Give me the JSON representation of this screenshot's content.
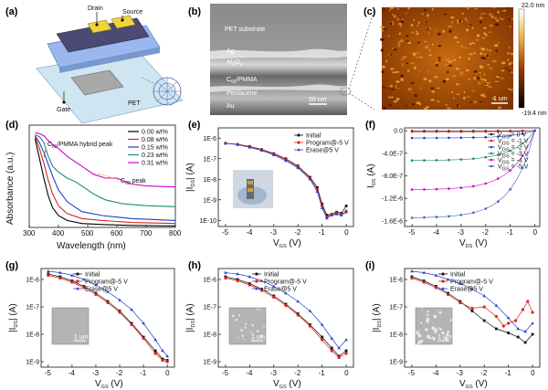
{
  "panels": {
    "a": {
      "label": "(a)",
      "drain": "Drain",
      "source": "Source",
      "gate": "Gate",
      "pet": "PET"
    },
    "b": {
      "label": "(b)",
      "layers": [
        "PET substrate",
        "Ag",
        "Al",
        "O",
        "3",
        "C",
        "60",
        "/PMMA",
        "Pentacene",
        "Au"
      ],
      "scale": "50 nm"
    },
    "c": {
      "label": "(c)",
      "scale": "1 um",
      "cbar_max": "22.0 nm",
      "cbar_min": "-19.4 nm"
    },
    "d": {
      "label": "(d)",
      "ylabel": "Absorbance (a.u.)",
      "xlabel": "Wavelength (nm)",
      "annot_hybrid": [
        "C",
        "60",
        "/PMMA hybrid peak"
      ],
      "annot_c60": [
        "C",
        "60",
        " peak"
      ],
      "legend": [
        "0.00 wt%",
        "0.08 wt%",
        "0.15 wt%",
        "0.23 wt%",
        "0.31 wt%"
      ],
      "colors": [
        "#000000",
        "#d62728",
        "#1f3fbf",
        "#1a8a7a",
        "#d400c8"
      ]
    },
    "e": {
      "label": "(e)",
      "legend": [
        "Initial",
        "Program@-5 V",
        "Erase@5 V"
      ],
      "ylabel": [
        "|I",
        "DS",
        "| (A)"
      ],
      "xlabel": [
        "V",
        "GS",
        " (V)"
      ]
    },
    "f": {
      "label": "(f)",
      "legend": [
        [
          "V",
          "GS",
          " = 0 V"
        ],
        [
          "V",
          "GS",
          " = -1 V"
        ],
        [
          "V",
          "GS",
          " = -2 V"
        ],
        [
          "V",
          "GS",
          " = -3 V"
        ],
        [
          "V",
          "GS",
          " = -4 V"
        ],
        [
          "V",
          "GS",
          " = -5 V"
        ]
      ],
      "ylabel": [
        "I",
        "DS",
        " (A)"
      ],
      "xlabel": [
        "V",
        "DS",
        " (V)"
      ]
    },
    "g": {
      "label": "(g)",
      "legend": [
        "Initial",
        "Program@-5 V",
        "Erase@5 V"
      ],
      "ylabel": [
        "|I",
        "DS",
        "| (A)"
      ],
      "xlabel": [
        "V",
        "GS",
        " (V)"
      ],
      "scale": "1 um"
    },
    "h": {
      "label": "(h)",
      "legend": [
        "Initial",
        "Program@-5 V",
        "Erase@5 V"
      ],
      "ylabel": [
        "|I",
        "DS",
        "| (A)"
      ],
      "xlabel": [
        "V",
        "GS",
        " (V)"
      ],
      "scale": "1 um"
    },
    "i": {
      "label": "(i)",
      "legend": [
        "Initial",
        "Program@-5 V",
        "Erase@5 V"
      ],
      "ylabel": [
        "|I",
        "DS",
        "| (A)"
      ],
      "xlabel": [
        "V",
        "GS",
        " (V)"
      ],
      "scale": "1 um"
    }
  },
  "chart_data": [
    {
      "panel": "d",
      "type": "line",
      "xlabel": "Wavelength (nm)",
      "ylabel": "Absorbance (a.u.)",
      "xlim": [
        300,
        800
      ],
      "xticks": [
        "300",
        "400",
        "500",
        "600",
        "700",
        "800"
      ],
      "series": [
        {
          "name": "0.00 wt%",
          "color": "#000000",
          "x": [
            320,
            335,
            350,
            365,
            380,
            400,
            430,
            480,
            550,
            650,
            800
          ],
          "y": [
            0.9,
            0.7,
            0.5,
            0.32,
            0.2,
            0.12,
            0.07,
            0.04,
            0.03,
            0.02,
            0.015
          ]
        },
        {
          "name": "0.08 wt%",
          "color": "#d62728",
          "x": [
            320,
            335,
            350,
            365,
            380,
            400,
            430,
            480,
            550,
            650,
            800
          ],
          "y": [
            0.92,
            0.8,
            0.65,
            0.48,
            0.34,
            0.22,
            0.14,
            0.09,
            0.07,
            0.05,
            0.04
          ]
        },
        {
          "name": "0.15 wt%",
          "color": "#1f3fbf",
          "x": [
            320,
            335,
            350,
            365,
            380,
            400,
            430,
            480,
            550,
            650,
            800
          ],
          "y": [
            0.93,
            0.86,
            0.76,
            0.64,
            0.52,
            0.38,
            0.26,
            0.16,
            0.12,
            0.09,
            0.07
          ]
        },
        {
          "name": "0.23 wt%",
          "color": "#1a8a7a",
          "x": [
            320,
            335,
            350,
            365,
            380,
            400,
            430,
            460,
            480,
            520,
            560,
            620,
            700,
            800
          ],
          "y": [
            0.94,
            0.92,
            0.86,
            0.72,
            0.62,
            0.56,
            0.5,
            0.46,
            0.42,
            0.34,
            0.28,
            0.24,
            0.22,
            0.21
          ]
        },
        {
          "name": "0.31 wt%",
          "color": "#d400c8",
          "x": [
            320,
            335,
            350,
            365,
            380,
            400,
            430,
            460,
            490,
            520,
            560,
            600,
            650,
            700,
            800
          ],
          "y": [
            0.96,
            0.95,
            0.93,
            0.88,
            0.84,
            0.8,
            0.72,
            0.66,
            0.6,
            0.54,
            0.5,
            0.5,
            0.44,
            0.42,
            0.41
          ]
        }
      ]
    },
    {
      "panel": "e",
      "type": "scatter",
      "xlabel": "VGS (V)",
      "ylabel": "|IDS| (A)",
      "xlim": [
        -5.3,
        0.3
      ],
      "ylim_log10": [
        -10.3,
        -5.5
      ],
      "xticks": [
        "-5",
        "-4",
        "-3",
        "-2",
        "-1",
        "0"
      ],
      "yticks": [
        "1E-6",
        "1E-7",
        "1E-8",
        "1E-9",
        "1E-10"
      ],
      "series": [
        {
          "name": "Initial",
          "color": "#111111",
          "x": [
            -5,
            -4.5,
            -4,
            -3.5,
            -3,
            -2.5,
            -2,
            -1.5,
            -1.2,
            -1,
            -0.8,
            -0.6,
            -0.4,
            -0.2,
            0
          ],
          "log10y": [
            -6.25,
            -6.3,
            -6.4,
            -6.55,
            -6.75,
            -7,
            -7.35,
            -7.9,
            -8.4,
            -9.2,
            -9.75,
            -9.7,
            -9.6,
            -9.65,
            -9.3
          ]
        },
        {
          "name": "Program@-5 V",
          "color": "#e02020",
          "x": [
            -5,
            -4.5,
            -4,
            -3.5,
            -3,
            -2.5,
            -2,
            -1.5,
            -1.2,
            -1,
            -0.8,
            -0.6,
            -0.4,
            -0.2,
            0
          ],
          "log10y": [
            -6.25,
            -6.3,
            -6.42,
            -6.57,
            -6.78,
            -7.05,
            -7.4,
            -7.95,
            -8.5,
            -9.3,
            -9.85,
            -9.7,
            -9.65,
            -9.7,
            -9.55
          ]
        },
        {
          "name": "Erase@5 V",
          "color": "#2040d0",
          "x": [
            -5,
            -4.5,
            -4,
            -3.5,
            -3,
            -2.5,
            -2,
            -1.5,
            -1.2,
            -1,
            -0.8,
            -0.6,
            -0.4,
            -0.2,
            0
          ],
          "log10y": [
            -6.25,
            -6.32,
            -6.45,
            -6.6,
            -6.82,
            -7.1,
            -7.45,
            -8.0,
            -8.6,
            -9.4,
            -9.9,
            -9.75,
            -9.7,
            -9.75,
            -9.6
          ]
        }
      ]
    },
    {
      "panel": "f",
      "type": "scatter",
      "xlabel": "VDS (V)",
      "ylabel": "IDS (A)",
      "xlim": [
        -5.3,
        0.2
      ],
      "ylim": [
        -1.7e-06,
        5e-08
      ],
      "xticks": [
        "-5",
        "-4",
        "-3",
        "-2",
        "-1",
        "0"
      ],
      "yticks": [
        "-1.6E-6",
        "-1.2E-6",
        "-8.0E-7",
        "-4.0E-7",
        "0.0"
      ],
      "series": [
        {
          "name": "VGS = 0 V",
          "color": "#111111",
          "sat": -5e-09
        },
        {
          "name": "VGS = -1 V",
          "color": "#e02020",
          "sat": -2e-08
        },
        {
          "name": "VGS = -2 V",
          "color": "#2040d0",
          "sat": -1.3e-07
        },
        {
          "name": "VGS = -3 V",
          "color": "#1a8a7a",
          "sat": -5.3e-07
        },
        {
          "name": "VGS = -4 V",
          "color": "#d400c8",
          "sat": -1.05e-06
        },
        {
          "name": "VGS = -5 V",
          "color": "#4060c0",
          "sat": -1.55e-06
        }
      ]
    },
    {
      "panel": "g",
      "type": "scatter",
      "xlabel": "VGS (V)",
      "ylabel": "|IDS| (A)",
      "xlim": [
        -5.3,
        0.3
      ],
      "ylim_log10": [
        -9.2,
        -5.6
      ],
      "xticks": [
        "-5",
        "-4",
        "-3",
        "-2",
        "-1",
        "0"
      ],
      "yticks": [
        "1E-6",
        "1E-7",
        "1E-8",
        "1E-9"
      ],
      "series": [
        {
          "name": "Initial",
          "color": "#111111",
          "x": [
            -5,
            -4.5,
            -4,
            -3.5,
            -3,
            -2.5,
            -2,
            -1.5,
            -1,
            -0.5,
            -0.2,
            0
          ],
          "log10y": [
            -5.8,
            -5.9,
            -6.05,
            -6.25,
            -6.5,
            -6.8,
            -7.15,
            -7.6,
            -8.1,
            -8.6,
            -8.9,
            -8.95
          ]
        },
        {
          "name": "Program@-5 V",
          "color": "#e02020",
          "x": [
            -5,
            -4.5,
            -4,
            -3.5,
            -3,
            -2.5,
            -2,
            -1.5,
            -1,
            -0.5,
            -0.2,
            0
          ],
          "log10y": [
            -5.85,
            -5.95,
            -6.1,
            -6.3,
            -6.55,
            -6.85,
            -7.2,
            -7.65,
            -8.15,
            -8.7,
            -8.95,
            -9.0
          ]
        },
        {
          "name": "Erase@5 V",
          "color": "#2040d0",
          "x": [
            -5,
            -4.5,
            -4,
            -3.5,
            -3,
            -2.5,
            -2,
            -1.5,
            -1,
            -0.5,
            -0.2,
            0
          ],
          "log10y": [
            -5.7,
            -5.75,
            -5.85,
            -6.0,
            -6.2,
            -6.45,
            -6.75,
            -7.1,
            -7.6,
            -8.2,
            -8.6,
            -8.8
          ]
        }
      ]
    },
    {
      "panel": "h",
      "type": "scatter",
      "xlabel": "VGS (V)",
      "ylabel": "|IDS| (A)",
      "xlim": [
        -5.3,
        0.3
      ],
      "ylim_log10": [
        -9.2,
        -5.6
      ],
      "xticks": [
        "-5",
        "-4",
        "-3",
        "-2",
        "-1",
        "0"
      ],
      "yticks": [
        "1E-6",
        "1E-7",
        "1E-8",
        "1E-9"
      ],
      "series": [
        {
          "name": "Initial",
          "color": "#111111",
          "x": [
            -5,
            -4.5,
            -4,
            -3.5,
            -3,
            -2.5,
            -2,
            -1.5,
            -1,
            -0.6,
            -0.3,
            0
          ],
          "log10y": [
            -5.9,
            -6.0,
            -6.15,
            -6.35,
            -6.6,
            -6.9,
            -7.25,
            -7.65,
            -8.1,
            -8.5,
            -8.8,
            -8.6
          ]
        },
        {
          "name": "Program@-5 V",
          "color": "#e02020",
          "x": [
            -5,
            -4.5,
            -4,
            -3.5,
            -3,
            -2.5,
            -2,
            -1.5,
            -1,
            -0.6,
            -0.3,
            0
          ],
          "log10y": [
            -5.95,
            -6.05,
            -6.2,
            -6.4,
            -6.65,
            -6.95,
            -7.3,
            -7.7,
            -8.2,
            -8.6,
            -8.85,
            -8.7
          ]
        },
        {
          "name": "Erase@5 V",
          "color": "#2040d0",
          "x": [
            -5,
            -4.5,
            -4,
            -3.5,
            -3,
            -2.5,
            -2,
            -1.5,
            -1,
            -0.6,
            -0.3,
            0
          ],
          "log10y": [
            -5.75,
            -5.8,
            -5.9,
            -6.05,
            -6.25,
            -6.5,
            -6.8,
            -7.15,
            -7.65,
            -8.15,
            -8.5,
            -8.2
          ]
        }
      ]
    },
    {
      "panel": "i",
      "type": "scatter",
      "xlabel": "VGS (V)",
      "ylabel": "|IDS| (A)",
      "xlim": [
        -5.3,
        0.3
      ],
      "ylim_log10": [
        -9.2,
        -5.6
      ],
      "xticks": [
        "-5",
        "-4",
        "-3",
        "-2",
        "-1",
        "0"
      ],
      "yticks": [
        "1E-6",
        "1E-7",
        "1E-8",
        "1E-9"
      ],
      "series": [
        {
          "name": "Initial",
          "color": "#111111",
          "x": [
            -5,
            -4.5,
            -4,
            -3.5,
            -3,
            -2.5,
            -2,
            -1.5,
            -1,
            -0.6,
            -0.3,
            0
          ],
          "log10y": [
            -5.9,
            -6.05,
            -6.25,
            -6.5,
            -6.8,
            -7.15,
            -7.5,
            -7.8,
            -7.95,
            -8.1,
            -8.3,
            -8.0
          ]
        },
        {
          "name": "Program@-5 V",
          "color": "#e02020",
          "x": [
            -5,
            -4.5,
            -4,
            -3.5,
            -3,
            -2.5,
            -2,
            -1.5,
            -1.2,
            -1,
            -0.7,
            -0.4,
            -0.2,
            0
          ],
          "log10y": [
            -5.95,
            -6.1,
            -6.3,
            -6.55,
            -6.85,
            -7.05,
            -7.0,
            -7.35,
            -7.7,
            -7.6,
            -7.5,
            -7.1,
            -6.8,
            -7.2
          ]
        },
        {
          "name": "Erase@5 V",
          "color": "#2040d0",
          "x": [
            -5,
            -4.5,
            -4,
            -3.5,
            -3,
            -2.5,
            -2,
            -1.5,
            -1,
            -0.6,
            -0.3,
            0
          ],
          "log10y": [
            -5.7,
            -5.75,
            -5.85,
            -6.0,
            -6.15,
            -6.35,
            -6.6,
            -6.95,
            -7.4,
            -7.8,
            -7.9,
            -7.6
          ]
        }
      ]
    }
  ]
}
